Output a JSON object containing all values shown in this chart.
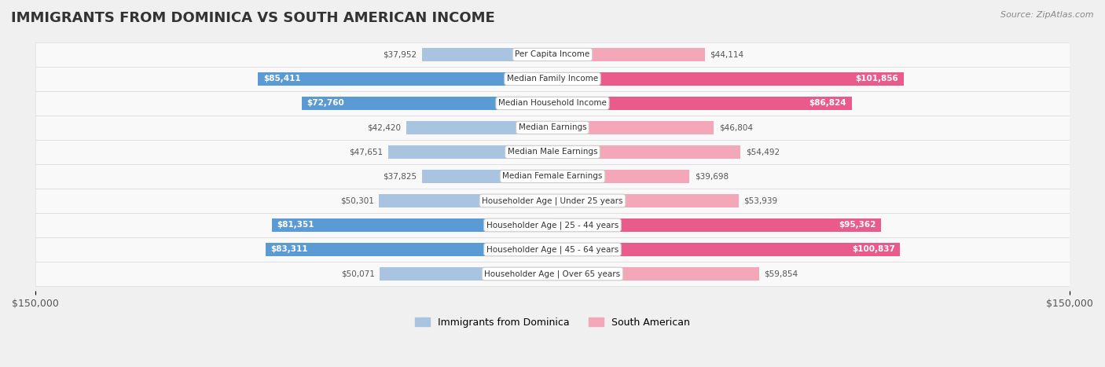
{
  "title": "IMMIGRANTS FROM DOMINICA VS SOUTH AMERICAN INCOME",
  "source": "Source: ZipAtlas.com",
  "categories": [
    "Per Capita Income",
    "Median Family Income",
    "Median Household Income",
    "Median Earnings",
    "Median Male Earnings",
    "Median Female Earnings",
    "Householder Age | Under 25 years",
    "Householder Age | 25 - 44 years",
    "Householder Age | 45 - 64 years",
    "Householder Age | Over 65 years"
  ],
  "dominica_values": [
    37952,
    85411,
    72760,
    42420,
    47651,
    37825,
    50301,
    81351,
    83311,
    50071
  ],
  "south_american_values": [
    44114,
    101856,
    86824,
    46804,
    54492,
    39698,
    53939,
    95362,
    100837,
    59854
  ],
  "dominica_labels": [
    "$37,952",
    "$85,411",
    "$72,760",
    "$42,420",
    "$47,651",
    "$37,825",
    "$50,301",
    "$81,351",
    "$83,311",
    "$50,071"
  ],
  "south_american_labels": [
    "$44,114",
    "$101,856",
    "$86,824",
    "$46,804",
    "$54,492",
    "$39,698",
    "$53,939",
    "$95,362",
    "$100,837",
    "$59,854"
  ],
  "dominica_color_light": "#a8c4e0",
  "dominica_color_dark": "#5b9bd5",
  "south_american_color_light": "#f4a7b9",
  "south_american_color_dark": "#e95b8a",
  "max_value": 150000,
  "background_color": "#f0f0f0",
  "row_bg_color": "#ffffff",
  "label_bg_color": "#f5f5f5",
  "legend_dominica": "Immigrants from Dominica",
  "legend_south_american": "South American"
}
